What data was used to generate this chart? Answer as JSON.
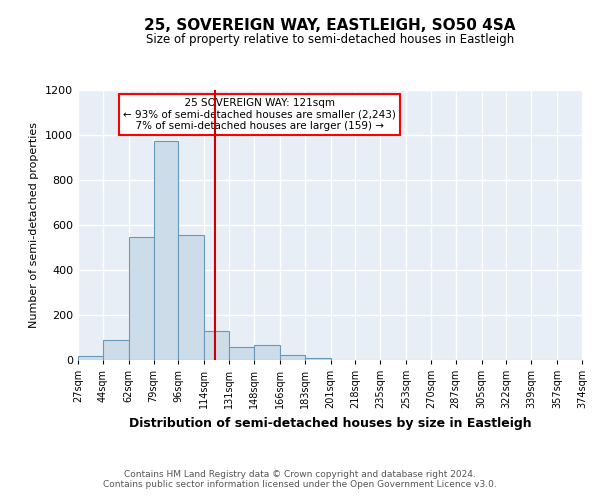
{
  "title": "25, SOVEREIGN WAY, EASTLEIGH, SO50 4SA",
  "subtitle": "Size of property relative to semi-detached houses in Eastleigh",
  "xlabel": "Distribution of semi-detached houses by size in Eastleigh",
  "ylabel": "Number of semi-detached properties",
  "annotation_line1": "25 SOVEREIGN WAY: 121sqm",
  "annotation_line2": "← 93% of semi-detached houses are smaller (2,243)",
  "annotation_line3": "7% of semi-detached houses are larger (159) →",
  "property_size": 121,
  "footer_line1": "Contains HM Land Registry data © Crown copyright and database right 2024.",
  "footer_line2": "Contains public sector information licensed under the Open Government Licence v3.0.",
  "bar_color": "#ccdce8",
  "bar_edge_color": "#6699bb",
  "vline_color": "#cc0000",
  "background_color": "#e8eef5",
  "grid_color": "#ffffff",
  "bin_edges": [
    27,
    44,
    62,
    79,
    96,
    114,
    131,
    148,
    166,
    183,
    201,
    218,
    235,
    253,
    270,
    287,
    305,
    322,
    339,
    357,
    374
  ],
  "bin_counts": [
    18,
    88,
    545,
    975,
    555,
    130,
    60,
    68,
    22,
    10,
    0,
    0,
    0,
    0,
    0,
    0,
    0,
    0,
    0,
    0
  ],
  "ylim": [
    0,
    1200
  ],
  "yticks": [
    0,
    200,
    400,
    600,
    800,
    1000,
    1200
  ]
}
